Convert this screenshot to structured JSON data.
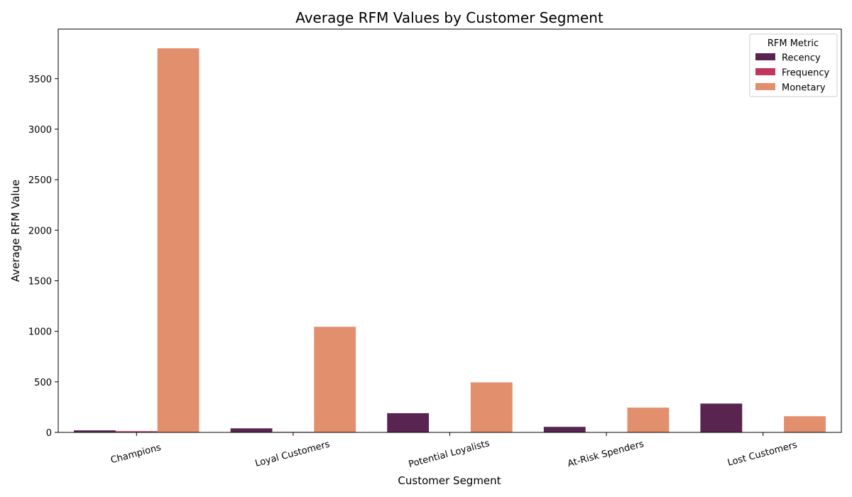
{
  "chart_data": {
    "type": "bar",
    "title": "Average RFM Values by Customer Segment",
    "xlabel": "Customer Segment",
    "ylabel": "Average RFM Value",
    "categories": [
      "Champions",
      "Loyal Customers",
      "Potential Loyalists",
      "At-Risk Spenders",
      "Lost Customers"
    ],
    "series": [
      {
        "name": "Recency",
        "color": "#5a2450",
        "values": [
          20,
          40,
          190,
          55,
          285
        ]
      },
      {
        "name": "Frequency",
        "color": "#c1365a",
        "values": [
          12,
          5,
          3,
          3,
          2
        ]
      },
      {
        "name": "Monetary",
        "color": "#e28f6e",
        "values": [
          3800,
          1045,
          495,
          245,
          160
        ]
      }
    ],
    "ylim": [
      0,
      3990
    ],
    "yticks": [
      0,
      500,
      1000,
      1500,
      2000,
      2500,
      3000,
      3500
    ],
    "grid": false,
    "legend": {
      "title": "RFM Metric",
      "position": "top-right"
    }
  }
}
